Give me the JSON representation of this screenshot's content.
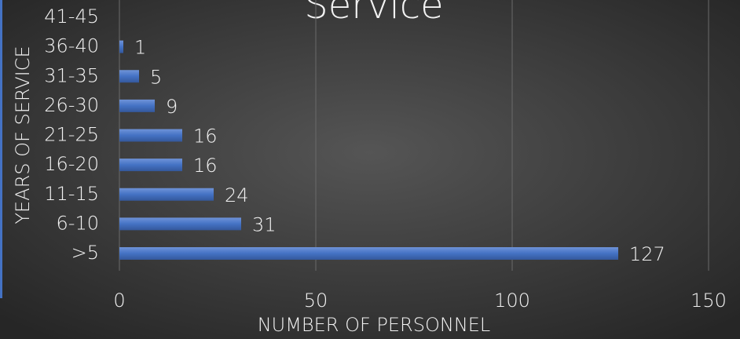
{
  "chart_data": {
    "type": "bar",
    "orientation": "horizontal",
    "title": "Service",
    "categories": [
      ">5",
      "6-10",
      "11-15",
      "16-20",
      "21-25",
      "26-30",
      "31-35",
      "36-40",
      "41-45"
    ],
    "values": [
      127,
      31,
      24,
      16,
      16,
      9,
      5,
      1,
      null
    ],
    "color": "#4472c4",
    "xlabel": "NUMBER OF PERSONNEL",
    "ylabel": "YEARS OF SERVICE",
    "xlim": [
      0,
      150
    ],
    "xticks": [
      0,
      50,
      100,
      150
    ],
    "grid": true
  }
}
